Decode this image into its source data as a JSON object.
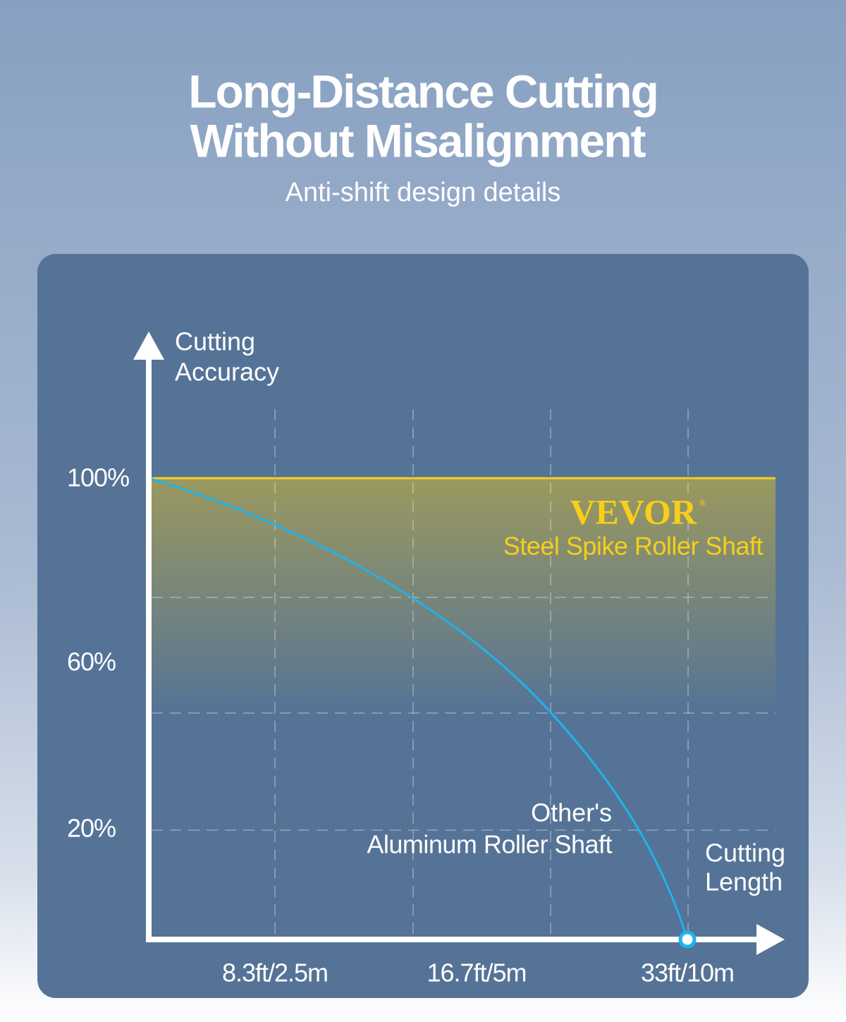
{
  "header": {
    "title_lines": [
      "Long-Distance Cutting",
      "Without Misalignment"
    ],
    "subtitle": "Anti-shift design details"
  },
  "graph": {
    "y_axis_label_lines": [
      "Cutting",
      "Accuracy"
    ],
    "x_axis_label_lines": [
      "Cutting",
      "Length"
    ],
    "y_labels": [
      "100%",
      "60%",
      "20%"
    ],
    "x_labels": [
      "8.3ft/2.5m",
      "16.7ft/5m",
      "33ft/10m"
    ],
    "brand": {
      "name": "VEVOR",
      "mark": "®",
      "product": "Steel Spike Roller Shaft"
    },
    "other_lines": [
      "Other's",
      "Aluminum Roller Shaft"
    ]
  }
}
